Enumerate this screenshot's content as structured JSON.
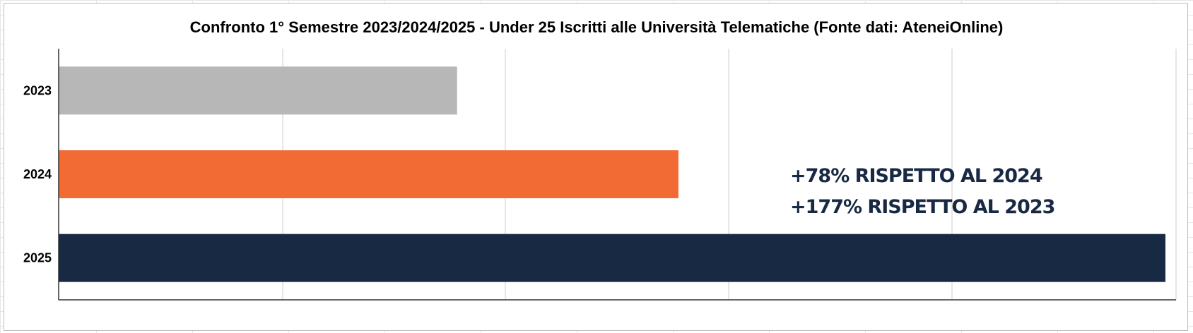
{
  "chart_data": {
    "type": "bar",
    "orientation": "horizontal",
    "title": "Confronto 1° Semestre 2023/2024/2025  - Under 25 Iscritti alle Università Telematiche (Fonte dati: AteneiOnline)",
    "categories": [
      "2023",
      "2024",
      "2025"
    ],
    "values": [
      36,
      56,
      100
    ],
    "colors": [
      "#b7b7b7",
      "#f26b35",
      "#182944"
    ],
    "xlim": [
      0,
      100
    ],
    "grid": "vertical",
    "legend": "none",
    "annotations": [
      "+78% RISPETTO AL 2024",
      "+177% RISPETTO AL 2023"
    ]
  }
}
